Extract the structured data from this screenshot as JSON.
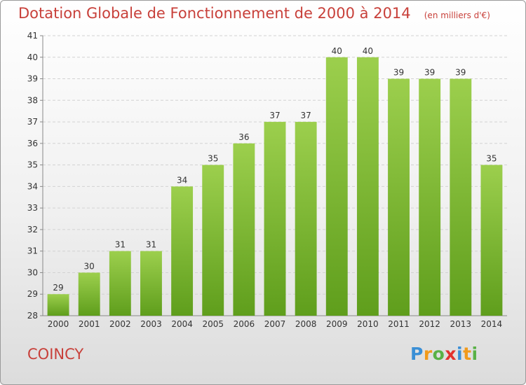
{
  "header": {
    "title": "Dotation Globale de Fonctionnement de 2000 à 2014",
    "subtitle": "(en milliers d'€)"
  },
  "footer": {
    "commune": "COINCY",
    "logo_text": "Proxiti",
    "logo_colors": [
      "#3a8fd6",
      "#f19a1b",
      "#59b146",
      "#e2312d",
      "#3a8fd6",
      "#f19a1b",
      "#59b146"
    ]
  },
  "colors": {
    "bar_top": "#9ccf4d",
    "bar_bottom": "#5f9e1c",
    "title": "#c8403a",
    "grid": "#d2d2d2"
  },
  "chart_data": {
    "type": "bar",
    "categories": [
      "2000",
      "2001",
      "2002",
      "2003",
      "2004",
      "2005",
      "2006",
      "2007",
      "2008",
      "2009",
      "2010",
      "2011",
      "2012",
      "2013",
      "2014"
    ],
    "values": [
      29,
      30,
      31,
      31,
      34,
      35,
      36,
      37,
      37,
      40,
      40,
      39,
      39,
      39,
      35
    ],
    "title": "Dotation Globale de Fonctionnement de 2000 à 2014",
    "subtitle": "(en milliers d'€)",
    "ylim": [
      28,
      41
    ],
    "yticks": [
      28,
      29,
      30,
      31,
      32,
      33,
      34,
      35,
      36,
      37,
      38,
      39,
      40,
      41
    ],
    "grid": "horizontal dashed",
    "data_labels": true
  }
}
